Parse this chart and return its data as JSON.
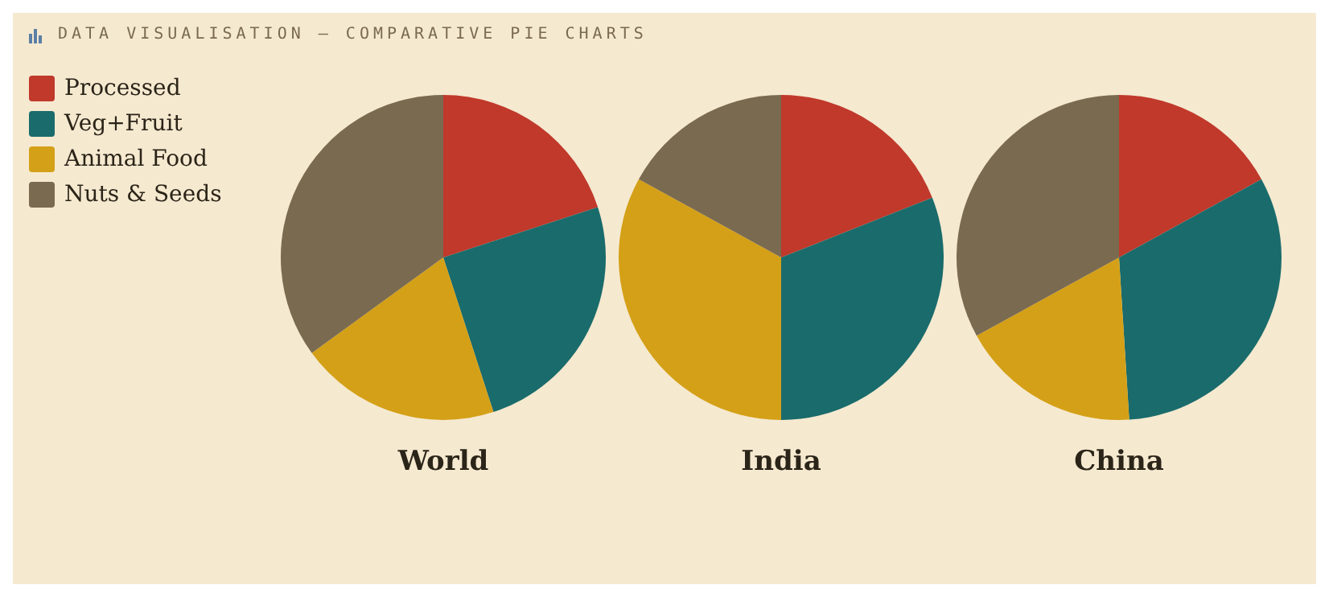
{
  "chart_data": [
    {
      "type": "pie",
      "title": "DATA VISUALISATION — COMPARATIVE PIE CHARTS",
      "xlabel": "World",
      "categories": [
        "Processed",
        "Veg+Fruit",
        "Animal Food",
        "Nuts & Seeds"
      ],
      "values": [
        20,
        25,
        20,
        35
      ],
      "colors": [
        "#c0392b",
        "#1a6b6b",
        "#d4a017",
        "#7a6a50"
      ],
      "legend": "top left"
    },
    {
      "type": "pie",
      "xlabel": "India",
      "categories": [
        null,
        null,
        null,
        null
      ],
      "values": [
        19,
        31,
        33,
        17
      ],
      "colors": [
        "#c0392b",
        "#1a6b6b",
        "#d4a017",
        "#7a6a50"
      ]
    },
    {
      "type": "pie",
      "xlabel": "China",
      "categories": [
        null,
        null,
        null,
        null
      ],
      "values": [
        17,
        32,
        18,
        33
      ],
      "colors": [
        "#c0392b",
        "#1a6b6b",
        "#d4a017",
        "#7a6a50"
      ]
    }
  ]
}
